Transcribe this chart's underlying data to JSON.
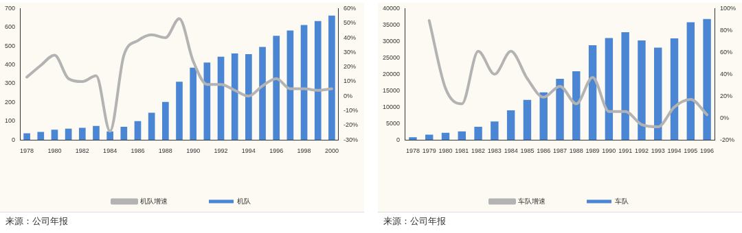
{
  "chart_data": [
    {
      "type": "bar",
      "categories": [
        "1978",
        null,
        "1980",
        null,
        "1982",
        null,
        "1984",
        null,
        "1986",
        null,
        "1988",
        null,
        "1990",
        null,
        "1992",
        null,
        "1994",
        null,
        "1996",
        null,
        "1998",
        null,
        "2000"
      ],
      "series": [
        {
          "name": "机队",
          "color": "#4a86d4",
          "values": [
            35,
            43,
            55,
            60,
            65,
            75,
            45,
            70,
            100,
            145,
            202,
            310,
            385,
            412,
            443,
            461,
            457,
            495,
            555,
            583,
            612,
            633,
            662
          ]
        },
        {
          "name": "机队增速",
          "type": "line",
          "axis": "y2",
          "color": "#b3b3b3",
          "values": [
            13,
            21,
            28,
            12,
            10,
            14,
            -24,
            28,
            38,
            42,
            40,
            53,
            24,
            8,
            8,
            4,
            0,
            7,
            12,
            5,
            5,
            4,
            5
          ]
        }
      ],
      "ylim": [
        0,
        700
      ],
      "yticks": [
        0,
        100,
        200,
        300,
        400,
        500,
        600,
        700
      ],
      "y2lim": [
        -30,
        60
      ],
      "y2ticks": [
        {
          "value": -30,
          "label": "-30%"
        },
        {
          "value": -20,
          "label": "-20%"
        },
        {
          "value": -10,
          "label": "-10%"
        },
        {
          "value": 0,
          "label": "0%"
        },
        {
          "value": 10,
          "label": "10%"
        },
        {
          "value": 20,
          "label": "20%"
        },
        {
          "value": 30,
          "label": "30%"
        },
        {
          "value": 40,
          "label": "40%"
        },
        {
          "value": 50,
          "label": "50%"
        },
        {
          "value": 60,
          "label": "60%"
        }
      ],
      "legend": "bottom",
      "grid": false,
      "marker": "none",
      "annotations": [
        "来源：公司年报"
      ]
    },
    {
      "type": "bar",
      "categories": [
        "1978",
        "1979",
        "1980",
        "1981",
        "1982",
        "1983",
        "1984",
        "1985",
        "1986",
        "1987",
        "1988",
        "1989",
        "1990",
        "1991",
        "1992",
        "1993",
        "1994",
        "1995",
        "1996"
      ],
      "series": [
        {
          "name": "车队",
          "color": "#4a86d4",
          "values": [
            800,
            1600,
            2200,
            2600,
            4000,
            5600,
            9000,
            12200,
            14500,
            18600,
            20900,
            28800,
            31000,
            32800,
            30300,
            28100,
            30900,
            35800,
            36800
          ]
        },
        {
          "name": "车队增速",
          "type": "line",
          "axis": "y2",
          "color": "#b3b3b3",
          "values": [
            null,
            89,
            27,
            13,
            61,
            40,
            61,
            36,
            19,
            29,
            13,
            37,
            6,
            6,
            -6,
            -8,
            10,
            17,
            3
          ]
        }
      ],
      "ylim": [
        0,
        40000
      ],
      "yticks": [
        0,
        5000,
        10000,
        15000,
        20000,
        25000,
        30000,
        35000,
        40000
      ],
      "y2lim": [
        -20,
        100
      ],
      "y2ticks": [
        {
          "value": -20,
          "label": "-20%"
        },
        {
          "value": 0,
          "label": "0%"
        },
        {
          "value": 20,
          "label": "20%"
        },
        {
          "value": 40,
          "label": "40%"
        },
        {
          "value": 60,
          "label": "60%"
        },
        {
          "value": 80,
          "label": "80%"
        },
        {
          "value": 100,
          "label": "100%"
        }
      ],
      "legend": "bottom",
      "grid": false,
      "marker": "none",
      "annotations": [
        "来源：公司年报"
      ]
    }
  ]
}
